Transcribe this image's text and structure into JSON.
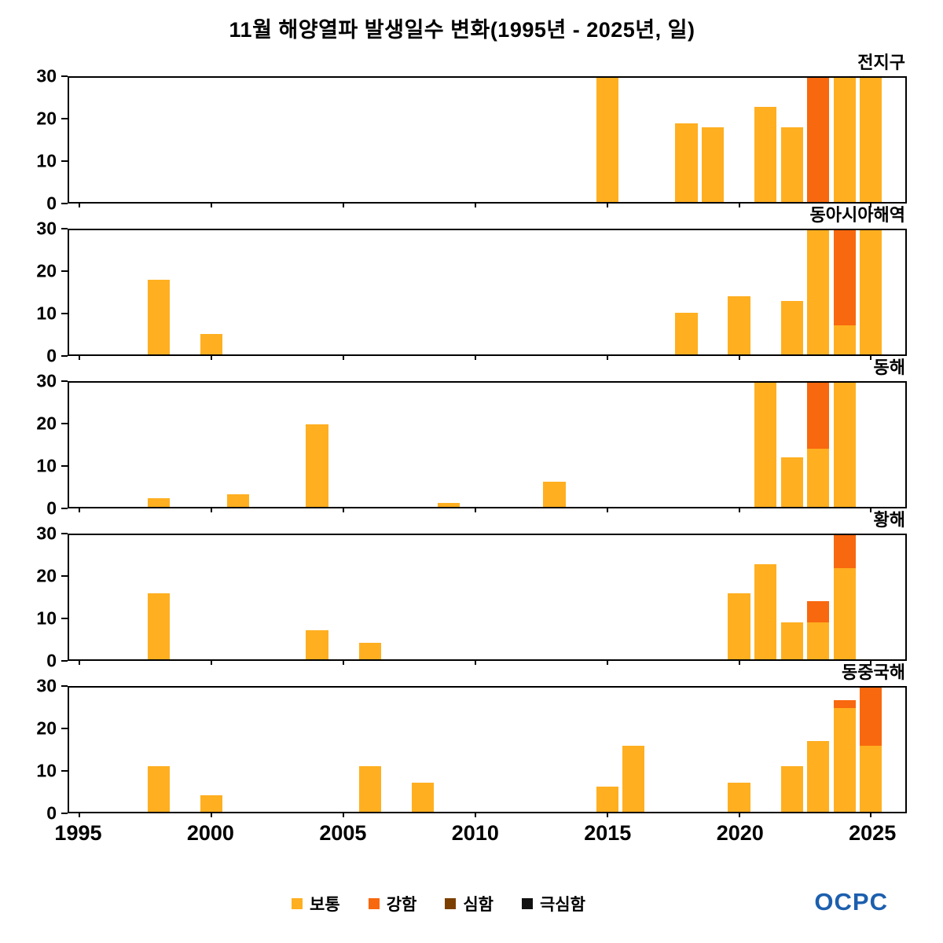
{
  "title": "11월 해양열파 발생일수 변화(1995년 - 2025년, 일)",
  "logo": {
    "text": "OCPC"
  },
  "colors": {
    "moderate": "#FFAF20",
    "strong": "#F8680E",
    "severe": "#7B3F00",
    "extreme": "#111111",
    "logo_blue": "#1C5FAE",
    "axis": "#000000",
    "background": "#FFFFFF"
  },
  "legend": [
    {
      "key": "moderate",
      "label": "보통"
    },
    {
      "key": "strong",
      "label": "강함"
    },
    {
      "key": "severe",
      "label": "심함"
    },
    {
      "key": "extreme",
      "label": "극심함"
    }
  ],
  "x_axis": {
    "min": 1994.6,
    "max": 2026.3,
    "ticks": [
      1995,
      2000,
      2005,
      2010,
      2015,
      2020,
      2025
    ]
  },
  "y_axis": {
    "min": 0,
    "max": 30,
    "ticks": [
      0,
      10,
      20,
      30
    ]
  },
  "chart_data": [
    {
      "type": "bar",
      "stacked": true,
      "title": "전지구",
      "ylim": [
        0,
        30
      ],
      "bars": [
        {
          "year": 2015,
          "moderate": 30
        },
        {
          "year": 2018,
          "moderate": 19
        },
        {
          "year": 2019,
          "moderate": 18
        },
        {
          "year": 2021,
          "moderate": 23
        },
        {
          "year": 2022,
          "moderate": 18
        },
        {
          "year": 2023,
          "strong": 30
        },
        {
          "year": 2024,
          "moderate": 30
        },
        {
          "year": 2025,
          "moderate": 30
        }
      ]
    },
    {
      "type": "bar",
      "stacked": true,
      "title": "동아시아해역",
      "ylim": [
        0,
        30
      ],
      "bars": [
        {
          "year": 1998,
          "moderate": 18
        },
        {
          "year": 2000,
          "moderate": 5
        },
        {
          "year": 2018,
          "moderate": 10
        },
        {
          "year": 2020,
          "moderate": 14
        },
        {
          "year": 2022,
          "moderate": 13
        },
        {
          "year": 2023,
          "moderate": 30
        },
        {
          "year": 2024,
          "moderate": 7,
          "strong": 23
        },
        {
          "year": 2025,
          "moderate": 30
        }
      ]
    },
    {
      "type": "bar",
      "stacked": true,
      "title": "동해",
      "ylim": [
        0,
        30
      ],
      "bars": [
        {
          "year": 1998,
          "moderate": 2
        },
        {
          "year": 2001,
          "moderate": 3
        },
        {
          "year": 2004,
          "moderate": 20
        },
        {
          "year": 2009,
          "moderate": 1
        },
        {
          "year": 2013,
          "moderate": 6
        },
        {
          "year": 2021,
          "moderate": 30
        },
        {
          "year": 2022,
          "moderate": 12
        },
        {
          "year": 2023,
          "moderate": 14,
          "strong": 16
        },
        {
          "year": 2024,
          "moderate": 30
        }
      ]
    },
    {
      "type": "bar",
      "stacked": true,
      "title": "황해",
      "ylim": [
        0,
        30
      ],
      "bars": [
        {
          "year": 1998,
          "moderate": 16
        },
        {
          "year": 2004,
          "moderate": 7
        },
        {
          "year": 2006,
          "moderate": 4
        },
        {
          "year": 2020,
          "moderate": 16
        },
        {
          "year": 2021,
          "moderate": 23
        },
        {
          "year": 2022,
          "moderate": 9
        },
        {
          "year": 2023,
          "moderate": 9,
          "strong": 5
        },
        {
          "year": 2024,
          "moderate": 22,
          "strong": 8
        }
      ]
    },
    {
      "type": "bar",
      "stacked": true,
      "title": "동중국해",
      "ylim": [
        0,
        30
      ],
      "bars": [
        {
          "year": 1998,
          "moderate": 11
        },
        {
          "year": 2000,
          "moderate": 4
        },
        {
          "year": 2006,
          "moderate": 11
        },
        {
          "year": 2008,
          "moderate": 7
        },
        {
          "year": 2015,
          "moderate": 6
        },
        {
          "year": 2016,
          "moderate": 16
        },
        {
          "year": 2020,
          "moderate": 7
        },
        {
          "year": 2022,
          "moderate": 11
        },
        {
          "year": 2023,
          "moderate": 17
        },
        {
          "year": 2024,
          "moderate": 25,
          "strong": 2
        },
        {
          "year": 2025,
          "moderate": 16,
          "strong": 14
        }
      ]
    }
  ]
}
